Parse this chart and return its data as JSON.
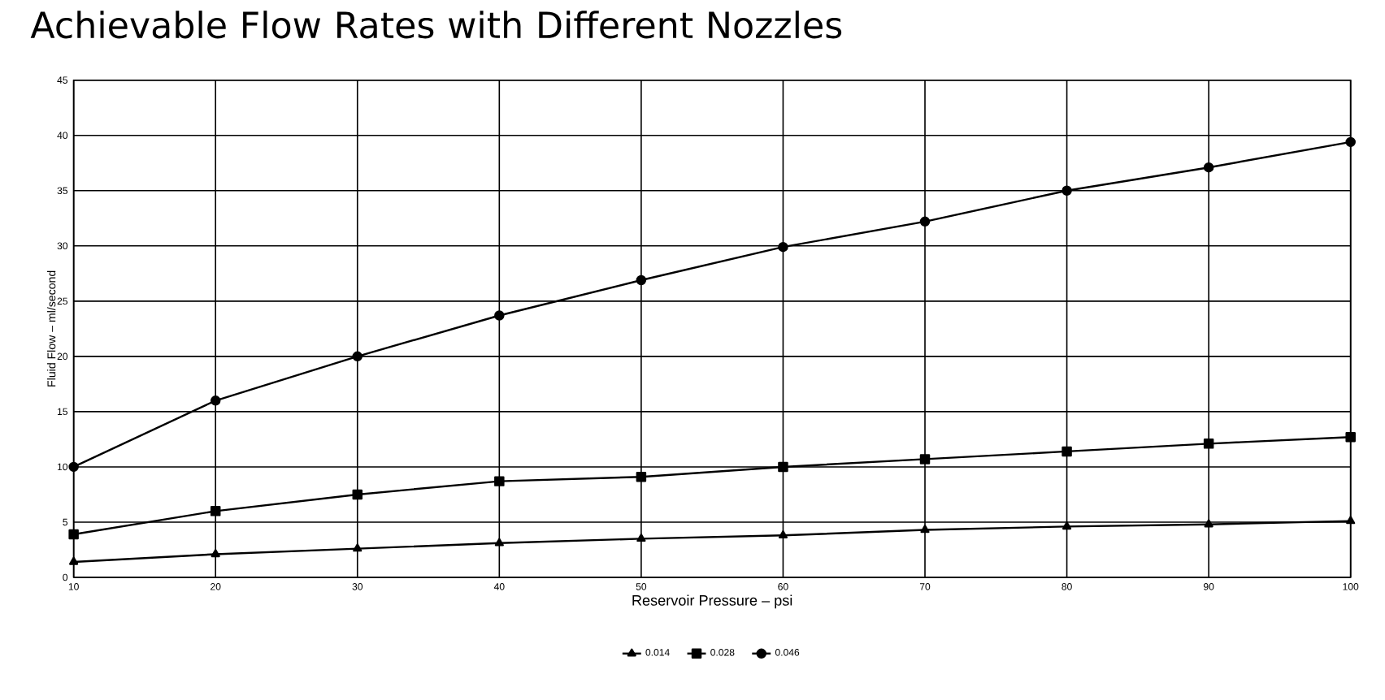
{
  "chart_data": {
    "type": "line",
    "title": "Achievable Flow Rates with Different Nozzles",
    "xlabel": "Reservoir Pressure – psi",
    "ylabel": "Fluid Flow – ml/second",
    "x": [
      10,
      20,
      30,
      40,
      50,
      60,
      70,
      80,
      90,
      100
    ],
    "series": [
      {
        "name": "0.014",
        "color": "#000000",
        "marker": "triangle",
        "values": [
          1.4,
          2.1,
          2.6,
          3.1,
          3.5,
          3.8,
          4.3,
          4.6,
          4.8,
          5.1
        ]
      },
      {
        "name": "0.028",
        "color": "#000000",
        "marker": "square",
        "values": [
          3.9,
          6.0,
          7.5,
          8.7,
          9.1,
          10.0,
          10.7,
          11.4,
          12.1,
          12.7
        ]
      },
      {
        "name": "0.046",
        "color": "#000000",
        "marker": "circle",
        "values": [
          10.0,
          16.0,
          20.0,
          23.7,
          26.9,
          29.9,
          32.2,
          35.0,
          37.1,
          39.4
        ]
      }
    ],
    "xlim": [
      10,
      100
    ],
    "xticks": [
      10,
      20,
      30,
      40,
      50,
      60,
      70,
      80,
      90,
      100
    ],
    "ylim": [
      0,
      45
    ],
    "yticks": [
      0,
      5,
      10,
      15,
      20,
      25,
      30,
      35,
      40,
      45
    ],
    "grid": true,
    "legend": "bottom",
    "line_style": "solid"
  }
}
